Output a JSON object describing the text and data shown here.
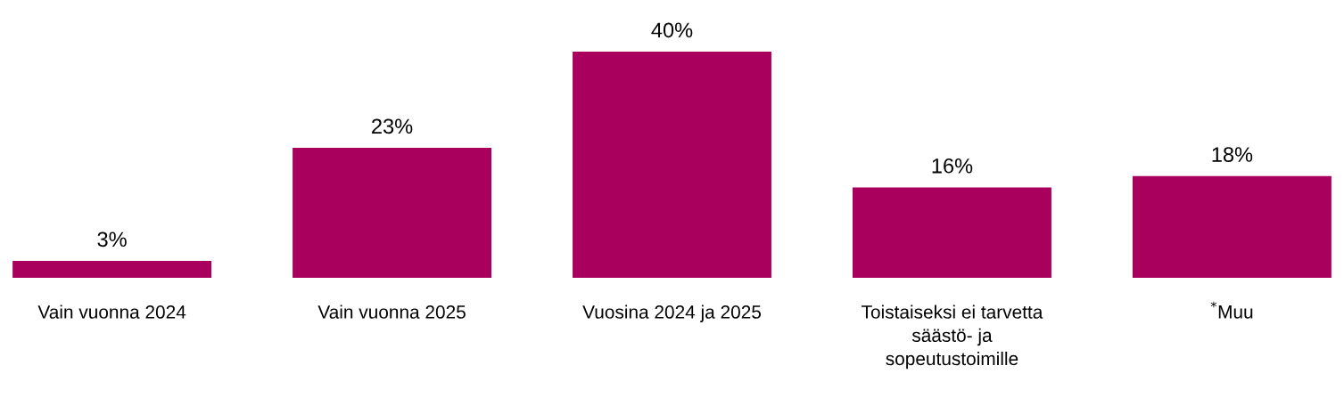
{
  "chart_data": {
    "type": "bar",
    "categories": [
      "Vain vuonna 2024",
      "Vain vuonna 2025",
      "Vuosina 2024 ja 2025",
      "Toistaiseksi ei tarvetta\nsäästö- ja\nsopeutustoimille",
      "$^{*}$Muu"
    ],
    "values": [
      3,
      23,
      40,
      16,
      18
    ],
    "value_labels": [
      "3%",
      "23%",
      "40%",
      "16%",
      "18%"
    ],
    "color": "#a8005c",
    "grid": false,
    "legend": false
  }
}
